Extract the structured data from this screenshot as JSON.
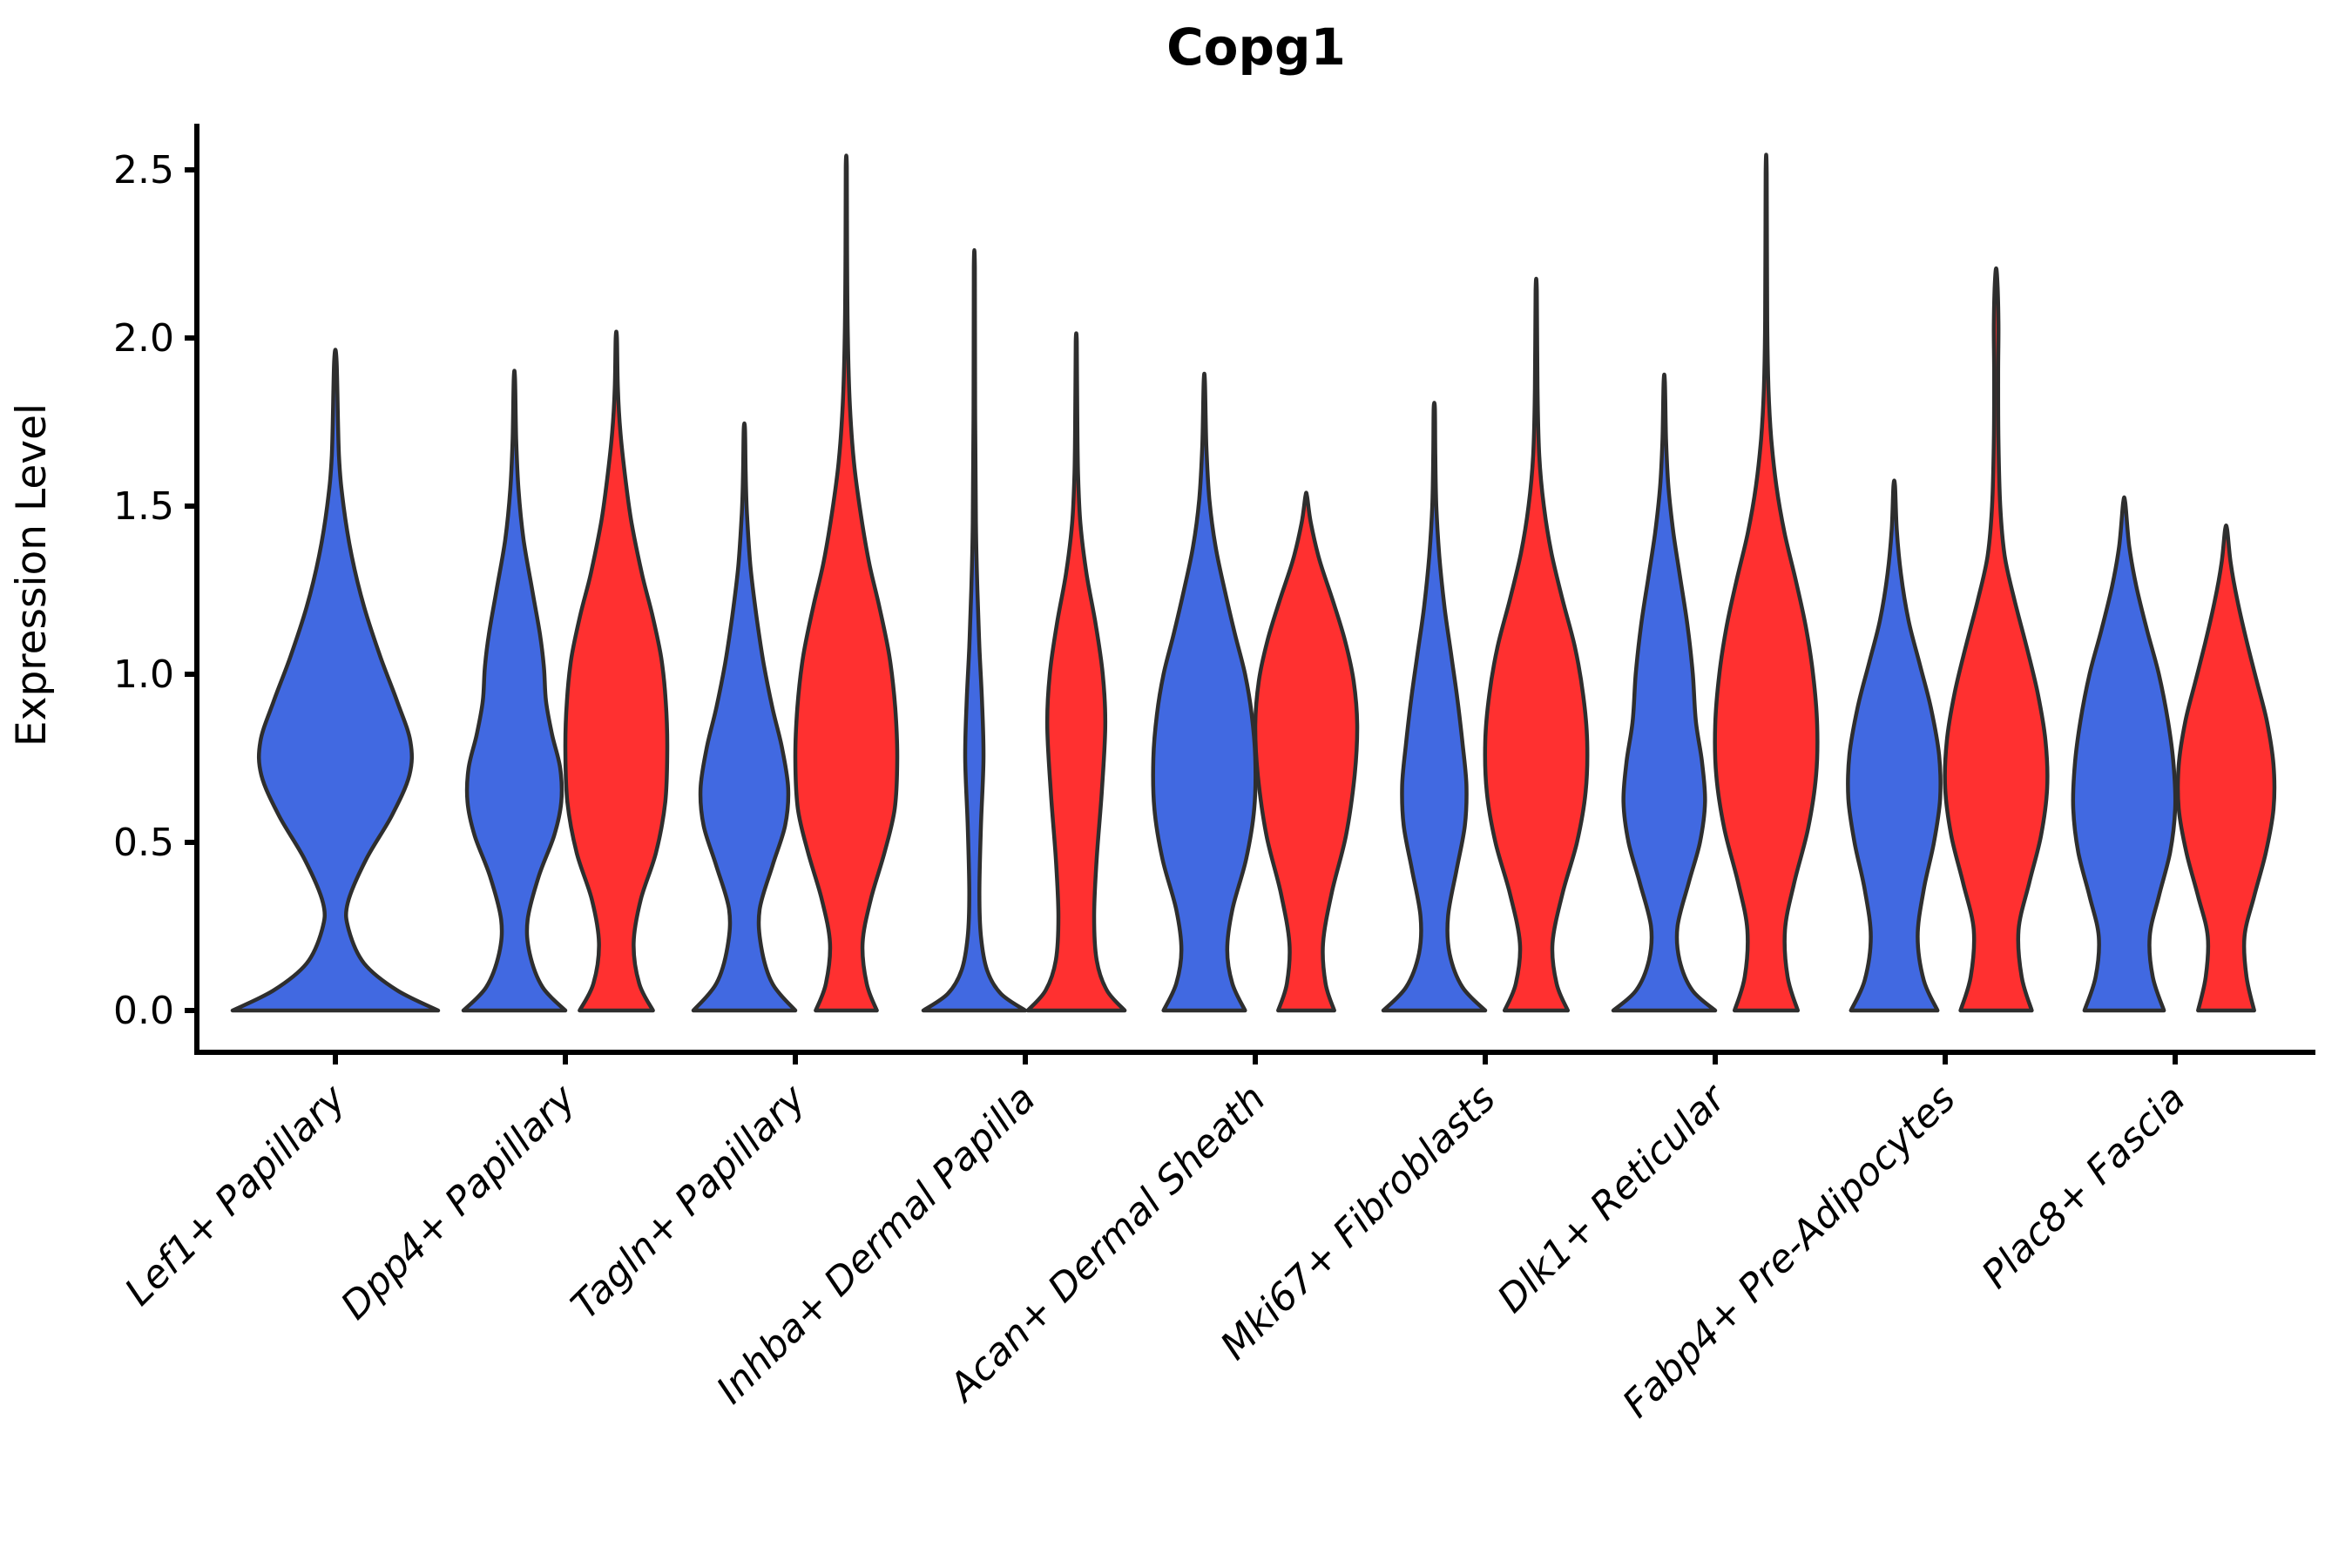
{
  "chart_data": {
    "type": "violin",
    "title": "Copg1",
    "ylabel": "Expression Level",
    "xlabel": "",
    "grid": false,
    "legend_position": "none",
    "ylim": [
      -0.12,
      2.64
    ],
    "yticks": [
      {
        "value": 0.0,
        "label": "0.0"
      },
      {
        "value": 0.5,
        "label": "0.5"
      },
      {
        "value": 1.0,
        "label": "1.0"
      },
      {
        "value": 1.5,
        "label": "1.5"
      },
      {
        "value": 2.0,
        "label": "2.0"
      },
      {
        "value": 2.5,
        "label": "2.5"
      }
    ],
    "categories": [
      "Lef1+ Papillary",
      "Dpp4+ Papillary",
      "Tagln+ Papillary",
      "Inhba+ Dermal Papilla",
      "Acan+ Dermal Sheath",
      "Mki67+ Fibroblasts",
      "Dlk1+ Reticular",
      "Fabp4+ Pre-Adipocytes",
      "Plac8+ Fascia"
    ],
    "split_colors": {
      "blue": "#4169E1",
      "red": "#FF3030"
    },
    "stroke_color": "#2e2e2e",
    "violins": [
      {
        "category": "Lef1+ Papillary",
        "group": "blue",
        "side": "center",
        "fill": "#4169E1",
        "max": 1.93,
        "profile": [
          [
            0,
            1.0
          ],
          [
            0.06,
            0.6
          ],
          [
            0.14,
            0.28
          ],
          [
            0.24,
            0.13
          ],
          [
            0.32,
            0.12
          ],
          [
            0.45,
            0.3
          ],
          [
            0.58,
            0.55
          ],
          [
            0.7,
            0.72
          ],
          [
            0.8,
            0.73
          ],
          [
            0.92,
            0.6
          ],
          [
            1.05,
            0.44
          ],
          [
            1.2,
            0.28
          ],
          [
            1.35,
            0.16
          ],
          [
            1.5,
            0.08
          ],
          [
            1.65,
            0.035
          ],
          [
            1.93,
            0.012
          ]
        ]
      },
      {
        "category": "Dpp4+ Papillary",
        "group": "blue",
        "side": "left",
        "fill": "#4169E1",
        "max": 1.88,
        "profile": [
          [
            0,
            1.0
          ],
          [
            0.07,
            0.55
          ],
          [
            0.17,
            0.3
          ],
          [
            0.27,
            0.26
          ],
          [
            0.4,
            0.48
          ],
          [
            0.52,
            0.78
          ],
          [
            0.62,
            0.92
          ],
          [
            0.72,
            0.9
          ],
          [
            0.82,
            0.74
          ],
          [
            0.92,
            0.62
          ],
          [
            1.02,
            0.58
          ],
          [
            1.12,
            0.5
          ],
          [
            1.25,
            0.35
          ],
          [
            1.4,
            0.18
          ],
          [
            1.55,
            0.08
          ],
          [
            1.7,
            0.035
          ],
          [
            1.88,
            0.012
          ]
        ]
      },
      {
        "category": "Dpp4+ Papillary",
        "group": "red",
        "side": "right",
        "fill": "#FF3030",
        "max": 2.0,
        "profile": [
          [
            0,
            0.72
          ],
          [
            0.08,
            0.45
          ],
          [
            0.2,
            0.34
          ],
          [
            0.33,
            0.48
          ],
          [
            0.47,
            0.78
          ],
          [
            0.62,
            0.96
          ],
          [
            0.78,
            1.0
          ],
          [
            0.92,
            0.97
          ],
          [
            1.05,
            0.88
          ],
          [
            1.18,
            0.7
          ],
          [
            1.3,
            0.5
          ],
          [
            1.45,
            0.3
          ],
          [
            1.58,
            0.18
          ],
          [
            1.72,
            0.08
          ],
          [
            1.85,
            0.03
          ],
          [
            2.0,
            0.012
          ]
        ]
      },
      {
        "category": "Tagln+ Papillary",
        "group": "blue",
        "side": "left",
        "fill": "#4169E1",
        "max": 1.73,
        "profile": [
          [
            0,
            1.0
          ],
          [
            0.08,
            0.55
          ],
          [
            0.19,
            0.33
          ],
          [
            0.3,
            0.3
          ],
          [
            0.43,
            0.55
          ],
          [
            0.55,
            0.8
          ],
          [
            0.66,
            0.86
          ],
          [
            0.78,
            0.74
          ],
          [
            0.9,
            0.55
          ],
          [
            1.03,
            0.38
          ],
          [
            1.17,
            0.24
          ],
          [
            1.32,
            0.12
          ],
          [
            1.48,
            0.05
          ],
          [
            1.6,
            0.025
          ],
          [
            1.73,
            0.012
          ]
        ]
      },
      {
        "category": "Tagln+ Papillary",
        "group": "red",
        "side": "right",
        "fill": "#FF3030",
        "max": 2.51,
        "profile": [
          [
            0,
            0.6
          ],
          [
            0.08,
            0.4
          ],
          [
            0.2,
            0.32
          ],
          [
            0.33,
            0.48
          ],
          [
            0.47,
            0.75
          ],
          [
            0.6,
            0.95
          ],
          [
            0.75,
            1.0
          ],
          [
            0.9,
            0.96
          ],
          [
            1.05,
            0.85
          ],
          [
            1.2,
            0.65
          ],
          [
            1.33,
            0.45
          ],
          [
            1.48,
            0.28
          ],
          [
            1.63,
            0.15
          ],
          [
            1.8,
            0.07
          ],
          [
            2.0,
            0.03
          ],
          [
            2.25,
            0.015
          ],
          [
            2.51,
            0.01
          ]
        ]
      },
      {
        "category": "Inhba+ Dermal Papilla",
        "group": "blue",
        "side": "left",
        "fill": "#4169E1",
        "max": 2.21,
        "profile": [
          [
            0,
            1.0
          ],
          [
            0.05,
            0.52
          ],
          [
            0.12,
            0.25
          ],
          [
            0.22,
            0.13
          ],
          [
            0.35,
            0.1
          ],
          [
            0.55,
            0.13
          ],
          [
            0.75,
            0.18
          ],
          [
            0.92,
            0.15
          ],
          [
            1.08,
            0.1
          ],
          [
            1.25,
            0.06
          ],
          [
            1.45,
            0.03
          ],
          [
            1.8,
            0.015
          ],
          [
            2.21,
            0.01
          ]
        ]
      },
      {
        "category": "Inhba+ Dermal Papilla",
        "group": "red",
        "side": "right",
        "fill": "#FF3030",
        "max": 1.99,
        "profile": [
          [
            0,
            0.95
          ],
          [
            0.06,
            0.6
          ],
          [
            0.15,
            0.4
          ],
          [
            0.28,
            0.35
          ],
          [
            0.45,
            0.4
          ],
          [
            0.65,
            0.5
          ],
          [
            0.85,
            0.57
          ],
          [
            1.0,
            0.52
          ],
          [
            1.15,
            0.38
          ],
          [
            1.3,
            0.2
          ],
          [
            1.45,
            0.08
          ],
          [
            1.6,
            0.035
          ],
          [
            1.8,
            0.018
          ],
          [
            1.99,
            0.01
          ]
        ]
      },
      {
        "category": "Acan+ Dermal Sheath",
        "group": "blue",
        "side": "left",
        "fill": "#4169E1",
        "max": 1.87,
        "profile": [
          [
            0,
            0.8
          ],
          [
            0.08,
            0.55
          ],
          [
            0.18,
            0.45
          ],
          [
            0.3,
            0.55
          ],
          [
            0.45,
            0.82
          ],
          [
            0.6,
            0.98
          ],
          [
            0.75,
            1.0
          ],
          [
            0.88,
            0.93
          ],
          [
            1.0,
            0.8
          ],
          [
            1.12,
            0.6
          ],
          [
            1.25,
            0.4
          ],
          [
            1.38,
            0.22
          ],
          [
            1.52,
            0.1
          ],
          [
            1.68,
            0.04
          ],
          [
            1.87,
            0.012
          ]
        ]
      },
      {
        "category": "Acan+ Dermal Sheath",
        "group": "red",
        "side": "right",
        "fill": "#FF3030",
        "max": 1.53,
        "profile": [
          [
            0,
            0.55
          ],
          [
            0.08,
            0.38
          ],
          [
            0.2,
            0.33
          ],
          [
            0.35,
            0.5
          ],
          [
            0.52,
            0.78
          ],
          [
            0.7,
            0.95
          ],
          [
            0.85,
            1.0
          ],
          [
            0.98,
            0.93
          ],
          [
            1.1,
            0.76
          ],
          [
            1.22,
            0.52
          ],
          [
            1.34,
            0.26
          ],
          [
            1.45,
            0.09
          ],
          [
            1.53,
            0.015
          ]
        ]
      },
      {
        "category": "Mki67+ Fibroblasts",
        "group": "blue",
        "side": "left",
        "fill": "#4169E1",
        "max": 1.79,
        "profile": [
          [
            0,
            1.0
          ],
          [
            0.07,
            0.55
          ],
          [
            0.17,
            0.3
          ],
          [
            0.28,
            0.27
          ],
          [
            0.42,
            0.44
          ],
          [
            0.55,
            0.6
          ],
          [
            0.67,
            0.63
          ],
          [
            0.8,
            0.55
          ],
          [
            0.93,
            0.45
          ],
          [
            1.06,
            0.33
          ],
          [
            1.2,
            0.2
          ],
          [
            1.35,
            0.1
          ],
          [
            1.5,
            0.04
          ],
          [
            1.65,
            0.02
          ],
          [
            1.79,
            0.012
          ]
        ]
      },
      {
        "category": "Mki67+ Fibroblasts",
        "group": "red",
        "side": "right",
        "fill": "#FF3030",
        "max": 2.14,
        "profile": [
          [
            0,
            0.62
          ],
          [
            0.08,
            0.4
          ],
          [
            0.2,
            0.32
          ],
          [
            0.35,
            0.52
          ],
          [
            0.5,
            0.8
          ],
          [
            0.65,
            0.97
          ],
          [
            0.8,
            1.0
          ],
          [
            0.94,
            0.92
          ],
          [
            1.08,
            0.76
          ],
          [
            1.22,
            0.52
          ],
          [
            1.36,
            0.3
          ],
          [
            1.5,
            0.15
          ],
          [
            1.65,
            0.06
          ],
          [
            1.85,
            0.025
          ],
          [
            2.14,
            0.012
          ]
        ]
      },
      {
        "category": "Dlk1+ Reticular",
        "group": "blue",
        "side": "left",
        "fill": "#4169E1",
        "max": 1.87,
        "profile": [
          [
            0,
            1.0
          ],
          [
            0.06,
            0.55
          ],
          [
            0.15,
            0.3
          ],
          [
            0.25,
            0.26
          ],
          [
            0.38,
            0.48
          ],
          [
            0.5,
            0.7
          ],
          [
            0.62,
            0.8
          ],
          [
            0.74,
            0.74
          ],
          [
            0.86,
            0.62
          ],
          [
            1.0,
            0.56
          ],
          [
            1.14,
            0.46
          ],
          [
            1.28,
            0.32
          ],
          [
            1.42,
            0.18
          ],
          [
            1.56,
            0.08
          ],
          [
            1.7,
            0.035
          ],
          [
            1.87,
            0.012
          ]
        ]
      },
      {
        "category": "Dlk1+ Reticular",
        "group": "red",
        "side": "right",
        "fill": "#FF3030",
        "max": 2.49,
        "profile": [
          [
            0,
            0.62
          ],
          [
            0.1,
            0.42
          ],
          [
            0.24,
            0.37
          ],
          [
            0.38,
            0.55
          ],
          [
            0.54,
            0.82
          ],
          [
            0.7,
            0.98
          ],
          [
            0.85,
            1.0
          ],
          [
            1.0,
            0.92
          ],
          [
            1.14,
            0.78
          ],
          [
            1.28,
            0.58
          ],
          [
            1.42,
            0.36
          ],
          [
            1.56,
            0.2
          ],
          [
            1.7,
            0.1
          ],
          [
            1.85,
            0.045
          ],
          [
            2.05,
            0.02
          ],
          [
            2.49,
            0.01
          ]
        ]
      },
      {
        "category": "Fabp4+ Pre-Adipocytes",
        "group": "blue",
        "side": "left",
        "fill": "#4169E1",
        "max": 1.56,
        "profile": [
          [
            0,
            0.85
          ],
          [
            0.09,
            0.58
          ],
          [
            0.22,
            0.46
          ],
          [
            0.36,
            0.58
          ],
          [
            0.5,
            0.78
          ],
          [
            0.63,
            0.9
          ],
          [
            0.76,
            0.88
          ],
          [
            0.9,
            0.72
          ],
          [
            1.03,
            0.5
          ],
          [
            1.16,
            0.28
          ],
          [
            1.3,
            0.13
          ],
          [
            1.43,
            0.05
          ],
          [
            1.56,
            0.015
          ]
        ]
      },
      {
        "category": "Fabp4+ Pre-Adipocytes",
        "group": "red",
        "side": "right",
        "fill": "#FF3030",
        "max": 2.19,
        "profile": [
          [
            0,
            0.7
          ],
          [
            0.1,
            0.5
          ],
          [
            0.24,
            0.44
          ],
          [
            0.38,
            0.65
          ],
          [
            0.52,
            0.88
          ],
          [
            0.66,
            1.0
          ],
          [
            0.8,
            0.97
          ],
          [
            0.94,
            0.82
          ],
          [
            1.08,
            0.6
          ],
          [
            1.22,
            0.36
          ],
          [
            1.35,
            0.17
          ],
          [
            1.5,
            0.08
          ],
          [
            1.7,
            0.045
          ],
          [
            1.9,
            0.04
          ],
          [
            2.05,
            0.045
          ],
          [
            2.19,
            0.015
          ]
        ]
      },
      {
        "category": "Plac8+ Fascia",
        "group": "blue",
        "side": "left",
        "fill": "#4169E1",
        "max": 1.51,
        "profile": [
          [
            0,
            0.78
          ],
          [
            0.1,
            0.56
          ],
          [
            0.22,
            0.5
          ],
          [
            0.34,
            0.68
          ],
          [
            0.47,
            0.9
          ],
          [
            0.6,
            1.0
          ],
          [
            0.73,
            0.97
          ],
          [
            0.86,
            0.86
          ],
          [
            1.0,
            0.68
          ],
          [
            1.13,
            0.45
          ],
          [
            1.26,
            0.24
          ],
          [
            1.38,
            0.1
          ],
          [
            1.51,
            0.02
          ]
        ]
      },
      {
        "category": "Plac8+ Fascia",
        "group": "red",
        "side": "right",
        "fill": "#FF3030",
        "max": 1.43,
        "profile": [
          [
            0,
            0.55
          ],
          [
            0.1,
            0.4
          ],
          [
            0.22,
            0.36
          ],
          [
            0.34,
            0.55
          ],
          [
            0.47,
            0.78
          ],
          [
            0.6,
            0.93
          ],
          [
            0.73,
            0.93
          ],
          [
            0.86,
            0.8
          ],
          [
            0.98,
            0.6
          ],
          [
            1.1,
            0.4
          ],
          [
            1.22,
            0.22
          ],
          [
            1.33,
            0.09
          ],
          [
            1.43,
            0.02
          ]
        ]
      }
    ]
  }
}
